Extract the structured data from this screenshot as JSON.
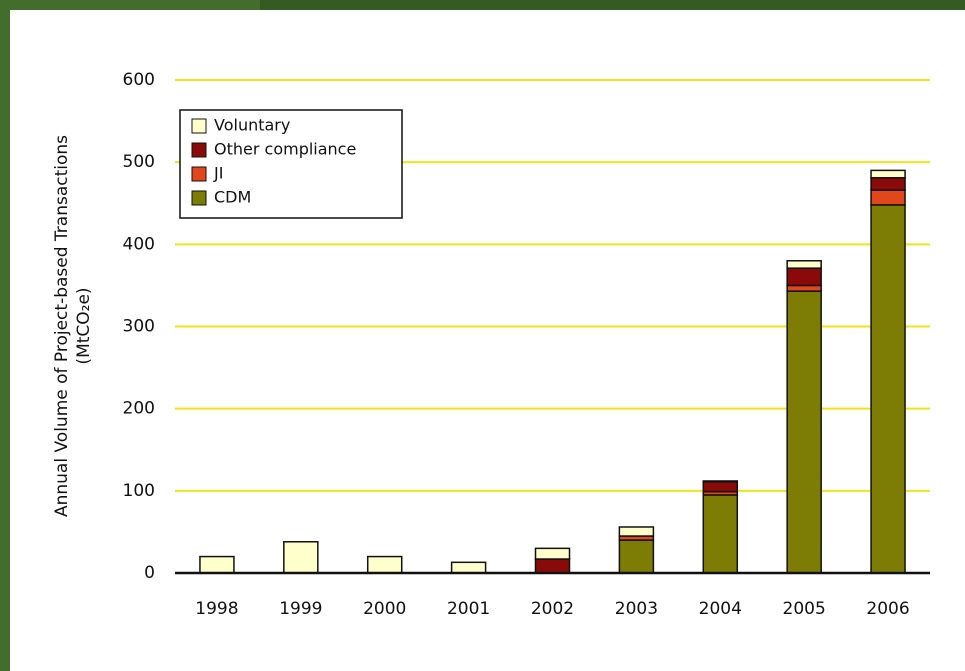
{
  "chart_data": {
    "type": "stacked-bar",
    "y_axis_label": "Annual Volume of Project-based Transactions",
    "y_axis_unit": "(MtCO₂e)",
    "categories": [
      "1998",
      "1999",
      "2000",
      "2001",
      "2002",
      "2003",
      "2004",
      "2005",
      "2006"
    ],
    "series": [
      {
        "name": "CDM",
        "color": "#7d7d05",
        "values": [
          0,
          0,
          0,
          0,
          0,
          40,
          95,
          343,
          448
        ]
      },
      {
        "name": "JI",
        "color": "#e2461b",
        "values": [
          0,
          0,
          0,
          0,
          0,
          5,
          4,
          7,
          18
        ]
      },
      {
        "name": "Other compliance",
        "color": "#8a0a0a",
        "values": [
          0,
          0,
          0,
          0,
          17,
          0,
          12,
          21,
          15
        ]
      },
      {
        "name": "Voluntary",
        "color": "#ffffcc",
        "values": [
          20,
          38,
          20,
          13,
          13,
          11,
          1,
          9,
          9
        ]
      }
    ],
    "ylim": [
      0,
      600
    ],
    "yticks": [
      0,
      100,
      200,
      300,
      400,
      500,
      600
    ],
    "grid": true,
    "grid_color": "#f2e31a",
    "legend": "upper-left"
  }
}
